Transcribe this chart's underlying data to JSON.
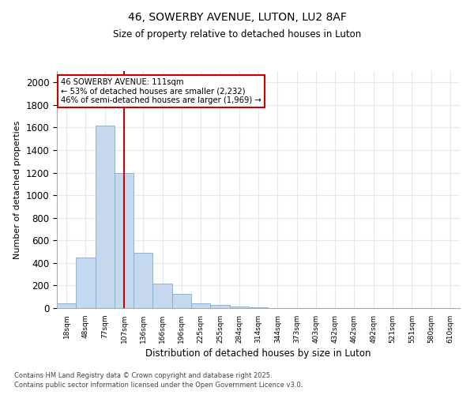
{
  "title_line1": "46, SOWERBY AVENUE, LUTON, LU2 8AF",
  "title_line2": "Size of property relative to detached houses in Luton",
  "xlabel": "Distribution of detached houses by size in Luton",
  "ylabel": "Number of detached properties",
  "categories": [
    "18sqm",
    "48sqm",
    "77sqm",
    "107sqm",
    "136sqm",
    "166sqm",
    "196sqm",
    "225sqm",
    "255sqm",
    "284sqm",
    "314sqm",
    "344sqm",
    "373sqm",
    "403sqm",
    "432sqm",
    "462sqm",
    "492sqm",
    "521sqm",
    "551sqm",
    "580sqm",
    "610sqm"
  ],
  "values": [
    45,
    450,
    1620,
    1200,
    490,
    220,
    125,
    45,
    25,
    15,
    10,
    0,
    0,
    0,
    0,
    0,
    0,
    0,
    0,
    0,
    0
  ],
  "bar_color": "#c5d8ed",
  "bar_edge_color": "#7aaed4",
  "vline_color": "#cc0000",
  "vline_pos": 3.5,
  "annotation_text": "46 SOWERBY AVENUE: 111sqm\n← 53% of detached houses are smaller (2,232)\n46% of semi-detached houses are larger (1,969) →",
  "annotation_box_color": "#ffffff",
  "annotation_box_edge": "#cc0000",
  "ylim": [
    0,
    2100
  ],
  "yticks": [
    0,
    200,
    400,
    600,
    800,
    1000,
    1200,
    1400,
    1600,
    1800,
    2000
  ],
  "footer_line1": "Contains HM Land Registry data © Crown copyright and database right 2025.",
  "footer_line2": "Contains public sector information licensed under the Open Government Licence v3.0.",
  "background_color": "#ffffff",
  "plot_background": "#ffffff",
  "grid_color": "#e0e8f0"
}
